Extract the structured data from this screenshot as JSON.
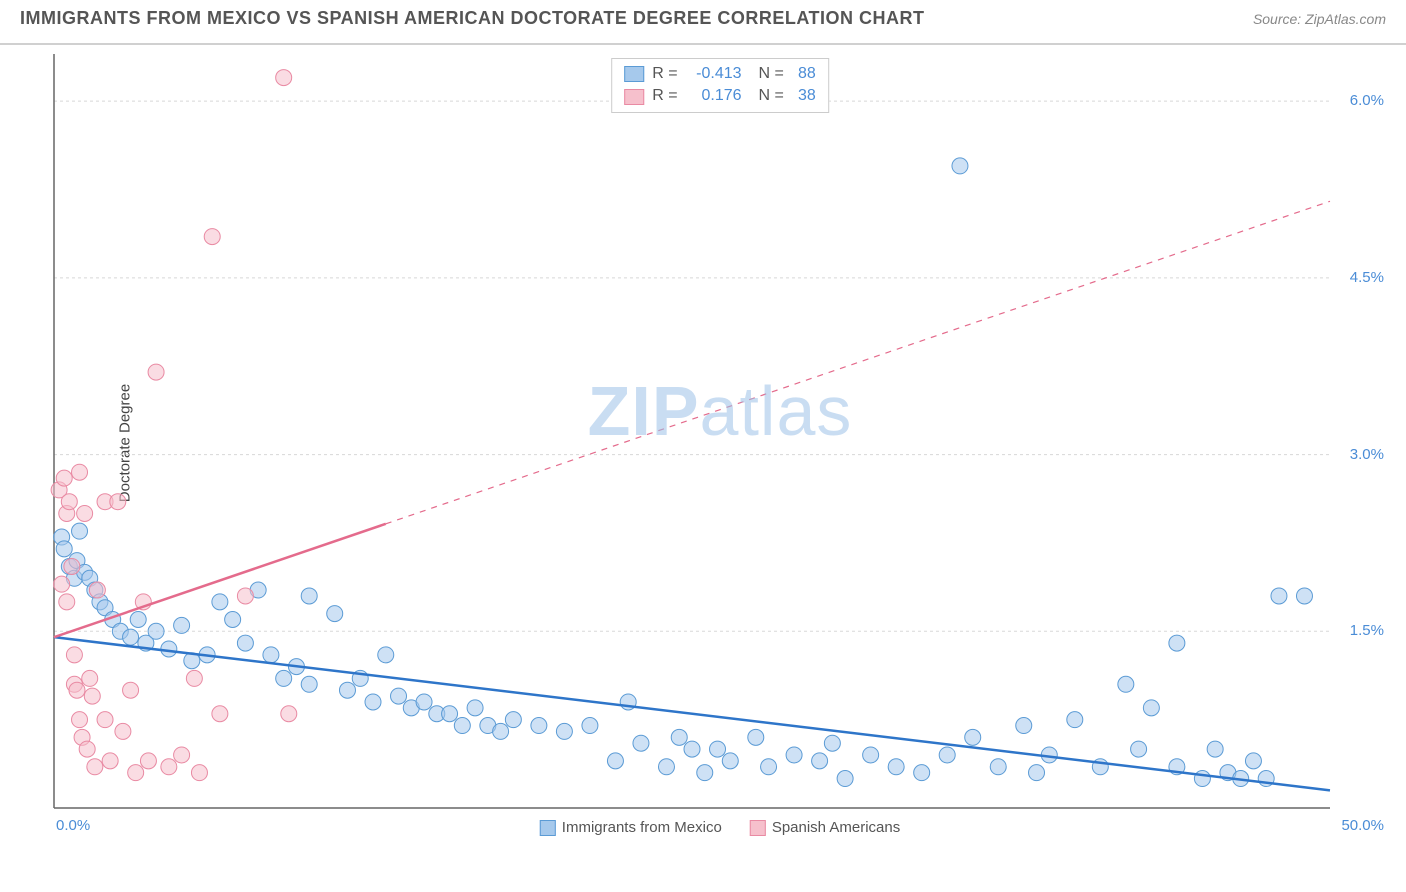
{
  "title": "IMMIGRANTS FROM MEXICO VS SPANISH AMERICAN DOCTORATE DEGREE CORRELATION CHART",
  "source": "Source: ZipAtlas.com",
  "watermark_bold": "ZIP",
  "watermark_rest": "atlas",
  "ylabel": "Doctorate Degree",
  "chart": {
    "type": "scatter",
    "xlim": [
      0,
      50
    ],
    "ylim": [
      0,
      6.4
    ],
    "xticks": {
      "min_label": "0.0%",
      "max_label": "50.0%"
    },
    "yticks": [
      {
        "val": 1.5,
        "label": "1.5%"
      },
      {
        "val": 3.0,
        "label": "3.0%"
      },
      {
        "val": 4.5,
        "label": "4.5%"
      },
      {
        "val": 6.0,
        "label": "6.0%"
      }
    ],
    "grid_color": "#d8d8d8",
    "axis_color": "#666666",
    "background_color": "#ffffff",
    "marker_radius": 8,
    "marker_opacity": 0.55,
    "line_width": 2.5,
    "series": [
      {
        "name": "Immigrants from Mexico",
        "color_fill": "#a6c9ec",
        "color_stroke": "#5b9bd5",
        "line_color": "#2e75c9",
        "r_value": "-0.413",
        "n_value": "88",
        "trend": {
          "x1": 0,
          "y1": 1.45,
          "x2": 50,
          "y2": 0.15,
          "dash": false,
          "solid_until": 50
        },
        "points": [
          [
            0.3,
            2.3
          ],
          [
            0.4,
            2.2
          ],
          [
            0.6,
            2.05
          ],
          [
            0.8,
            1.95
          ],
          [
            0.9,
            2.1
          ],
          [
            1.0,
            2.35
          ],
          [
            1.2,
            2.0
          ],
          [
            1.4,
            1.95
          ],
          [
            1.6,
            1.85
          ],
          [
            1.8,
            1.75
          ],
          [
            2.0,
            1.7
          ],
          [
            2.3,
            1.6
          ],
          [
            2.6,
            1.5
          ],
          [
            3.0,
            1.45
          ],
          [
            3.3,
            1.6
          ],
          [
            3.6,
            1.4
          ],
          [
            4.0,
            1.5
          ],
          [
            4.5,
            1.35
          ],
          [
            5.0,
            1.55
          ],
          [
            5.4,
            1.25
          ],
          [
            6.0,
            1.3
          ],
          [
            6.5,
            1.75
          ],
          [
            7.0,
            1.6
          ],
          [
            7.5,
            1.4
          ],
          [
            8.0,
            1.85
          ],
          [
            8.5,
            1.3
          ],
          [
            9.0,
            1.1
          ],
          [
            9.5,
            1.2
          ],
          [
            10.0,
            1.05
          ],
          [
            10.0,
            1.8
          ],
          [
            11.0,
            1.65
          ],
          [
            11.5,
            1.0
          ],
          [
            12.0,
            1.1
          ],
          [
            12.5,
            0.9
          ],
          [
            13.0,
            1.3
          ],
          [
            13.5,
            0.95
          ],
          [
            14.0,
            0.85
          ],
          [
            14.5,
            0.9
          ],
          [
            15.0,
            0.8
          ],
          [
            15.5,
            0.8
          ],
          [
            16.0,
            0.7
          ],
          [
            16.5,
            0.85
          ],
          [
            17.0,
            0.7
          ],
          [
            17.5,
            0.65
          ],
          [
            18.0,
            0.75
          ],
          [
            19.0,
            0.7
          ],
          [
            20.0,
            0.65
          ],
          [
            21.0,
            0.7
          ],
          [
            22.0,
            0.4
          ],
          [
            22.5,
            0.9
          ],
          [
            23.0,
            0.55
          ],
          [
            24.0,
            0.35
          ],
          [
            24.5,
            0.6
          ],
          [
            25.0,
            0.5
          ],
          [
            25.5,
            0.3
          ],
          [
            26.0,
            0.5
          ],
          [
            26.5,
            0.4
          ],
          [
            27.5,
            0.6
          ],
          [
            28.0,
            0.35
          ],
          [
            29.0,
            0.45
          ],
          [
            30.0,
            0.4
          ],
          [
            30.5,
            0.55
          ],
          [
            31.0,
            0.25
          ],
          [
            32.0,
            0.45
          ],
          [
            33.0,
            0.35
          ],
          [
            34.0,
            0.3
          ],
          [
            35.0,
            0.45
          ],
          [
            35.5,
            5.45
          ],
          [
            36.0,
            0.6
          ],
          [
            37.0,
            0.35
          ],
          [
            38.0,
            0.7
          ],
          [
            38.5,
            0.3
          ],
          [
            39.0,
            0.45
          ],
          [
            40.0,
            0.75
          ],
          [
            41.0,
            0.35
          ],
          [
            42.0,
            1.05
          ],
          [
            42.5,
            0.5
          ],
          [
            43.0,
            0.85
          ],
          [
            44.0,
            0.35
          ],
          [
            44.0,
            1.4
          ],
          [
            45.0,
            0.25
          ],
          [
            45.5,
            0.5
          ],
          [
            46.0,
            0.3
          ],
          [
            46.5,
            0.25
          ],
          [
            47.0,
            0.4
          ],
          [
            48.0,
            1.8
          ],
          [
            49.0,
            1.8
          ],
          [
            47.5,
            0.25
          ]
        ]
      },
      {
        "name": "Spanish Americans",
        "color_fill": "#f6c0cc",
        "color_stroke": "#e98aa3",
        "line_color": "#e46b8c",
        "r_value": "0.176",
        "n_value": "38",
        "trend": {
          "x1": 0,
          "y1": 1.45,
          "x2": 50,
          "y2": 5.15,
          "dash": true,
          "solid_until": 13
        },
        "points": [
          [
            0.2,
            2.7
          ],
          [
            0.3,
            1.9
          ],
          [
            0.4,
            2.8
          ],
          [
            0.5,
            2.5
          ],
          [
            0.5,
            1.75
          ],
          [
            0.6,
            2.6
          ],
          [
            0.7,
            2.05
          ],
          [
            0.8,
            1.05
          ],
          [
            0.8,
            1.3
          ],
          [
            0.9,
            1.0
          ],
          [
            1.0,
            2.85
          ],
          [
            1.0,
            0.75
          ],
          [
            1.1,
            0.6
          ],
          [
            1.2,
            2.5
          ],
          [
            1.3,
            0.5
          ],
          [
            1.4,
            1.1
          ],
          [
            1.5,
            0.95
          ],
          [
            1.6,
            0.35
          ],
          [
            1.7,
            1.85
          ],
          [
            2.0,
            2.6
          ],
          [
            2.0,
            0.75
          ],
          [
            2.2,
            0.4
          ],
          [
            2.5,
            2.6
          ],
          [
            2.7,
            0.65
          ],
          [
            3.0,
            1.0
          ],
          [
            3.2,
            0.3
          ],
          [
            3.5,
            1.75
          ],
          [
            3.7,
            0.4
          ],
          [
            4.0,
            3.7
          ],
          [
            4.5,
            0.35
          ],
          [
            5.0,
            0.45
          ],
          [
            5.5,
            1.1
          ],
          [
            5.7,
            0.3
          ],
          [
            6.2,
            4.85
          ],
          [
            6.5,
            0.8
          ],
          [
            7.5,
            1.8
          ],
          [
            9.0,
            6.2
          ],
          [
            9.2,
            0.8
          ]
        ]
      }
    ]
  },
  "legend_bottom": [
    {
      "label": "Immigrants from Mexico",
      "fill": "#a6c9ec",
      "stroke": "#5b9bd5"
    },
    {
      "label": "Spanish Americans",
      "fill": "#f6c0cc",
      "stroke": "#e98aa3"
    }
  ]
}
